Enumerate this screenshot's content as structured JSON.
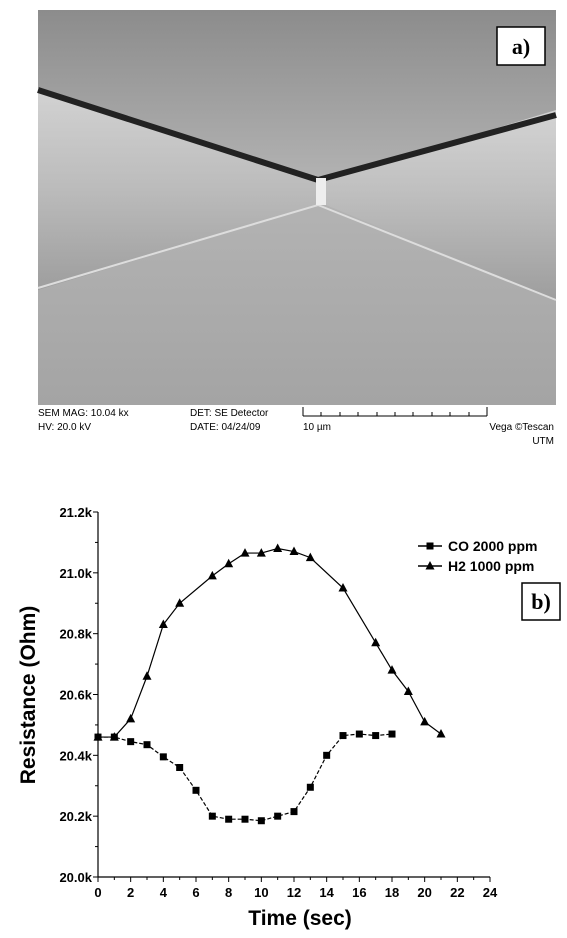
{
  "panel_a": {
    "label": "a)",
    "info": {
      "mag": "SEM MAG: 10.04 kx",
      "det": "DET: SE Detector",
      "hv": "HV:  20.0 kV",
      "date": "DATE: 04/24/09",
      "scale": "10 µm",
      "maker": "Vega ©Tescan",
      "site": "UTM"
    }
  },
  "chart_data": {
    "type": "line",
    "panel_label": "b)",
    "xlabel": "Time (sec)",
    "ylabel": "Resistance (Ohm)",
    "xlim": [
      0,
      24
    ],
    "xticks": [
      0,
      2,
      4,
      6,
      8,
      10,
      12,
      14,
      16,
      18,
      20,
      22,
      24
    ],
    "ylim": [
      20.0,
      21.2
    ],
    "yticks": [
      {
        "value": 20.0,
        "label": "20.0k"
      },
      {
        "value": 20.2,
        "label": "20.2k"
      },
      {
        "value": 20.4,
        "label": "20.4k"
      },
      {
        "value": 20.6,
        "label": "20.6k"
      },
      {
        "value": 20.8,
        "label": "20.8k"
      },
      {
        "value": 21.0,
        "label": "21.0k"
      },
      {
        "value": 21.2,
        "label": "21.2k"
      }
    ],
    "legend": "upper right",
    "series": [
      {
        "name": "CO 2000 ppm",
        "color": "#000000",
        "marker": "square",
        "line_style": "dashed",
        "x": [
          0,
          1,
          2,
          3,
          4,
          5,
          6,
          7,
          8,
          9,
          10,
          11,
          12,
          13,
          14,
          15,
          16,
          17,
          18
        ],
        "values": [
          20.46,
          20.46,
          20.445,
          20.435,
          20.395,
          20.36,
          20.285,
          20.2,
          20.19,
          20.19,
          20.185,
          20.2,
          20.215,
          20.295,
          20.4,
          20.465,
          20.47,
          20.465,
          20.47
        ]
      },
      {
        "name": "H2 1000 ppm",
        "color": "#000000",
        "marker": "triangle",
        "line_style": "solid",
        "x": [
          0,
          1,
          2,
          3,
          4,
          5,
          7,
          8,
          9,
          10,
          11,
          12,
          13,
          15,
          17,
          18,
          19,
          20,
          21
        ],
        "values": [
          20.46,
          20.46,
          20.52,
          20.66,
          20.83,
          20.9,
          20.99,
          21.03,
          21.065,
          21.065,
          21.08,
          21.07,
          21.05,
          20.95,
          20.77,
          20.68,
          20.61,
          20.51,
          20.47
        ]
      }
    ]
  }
}
